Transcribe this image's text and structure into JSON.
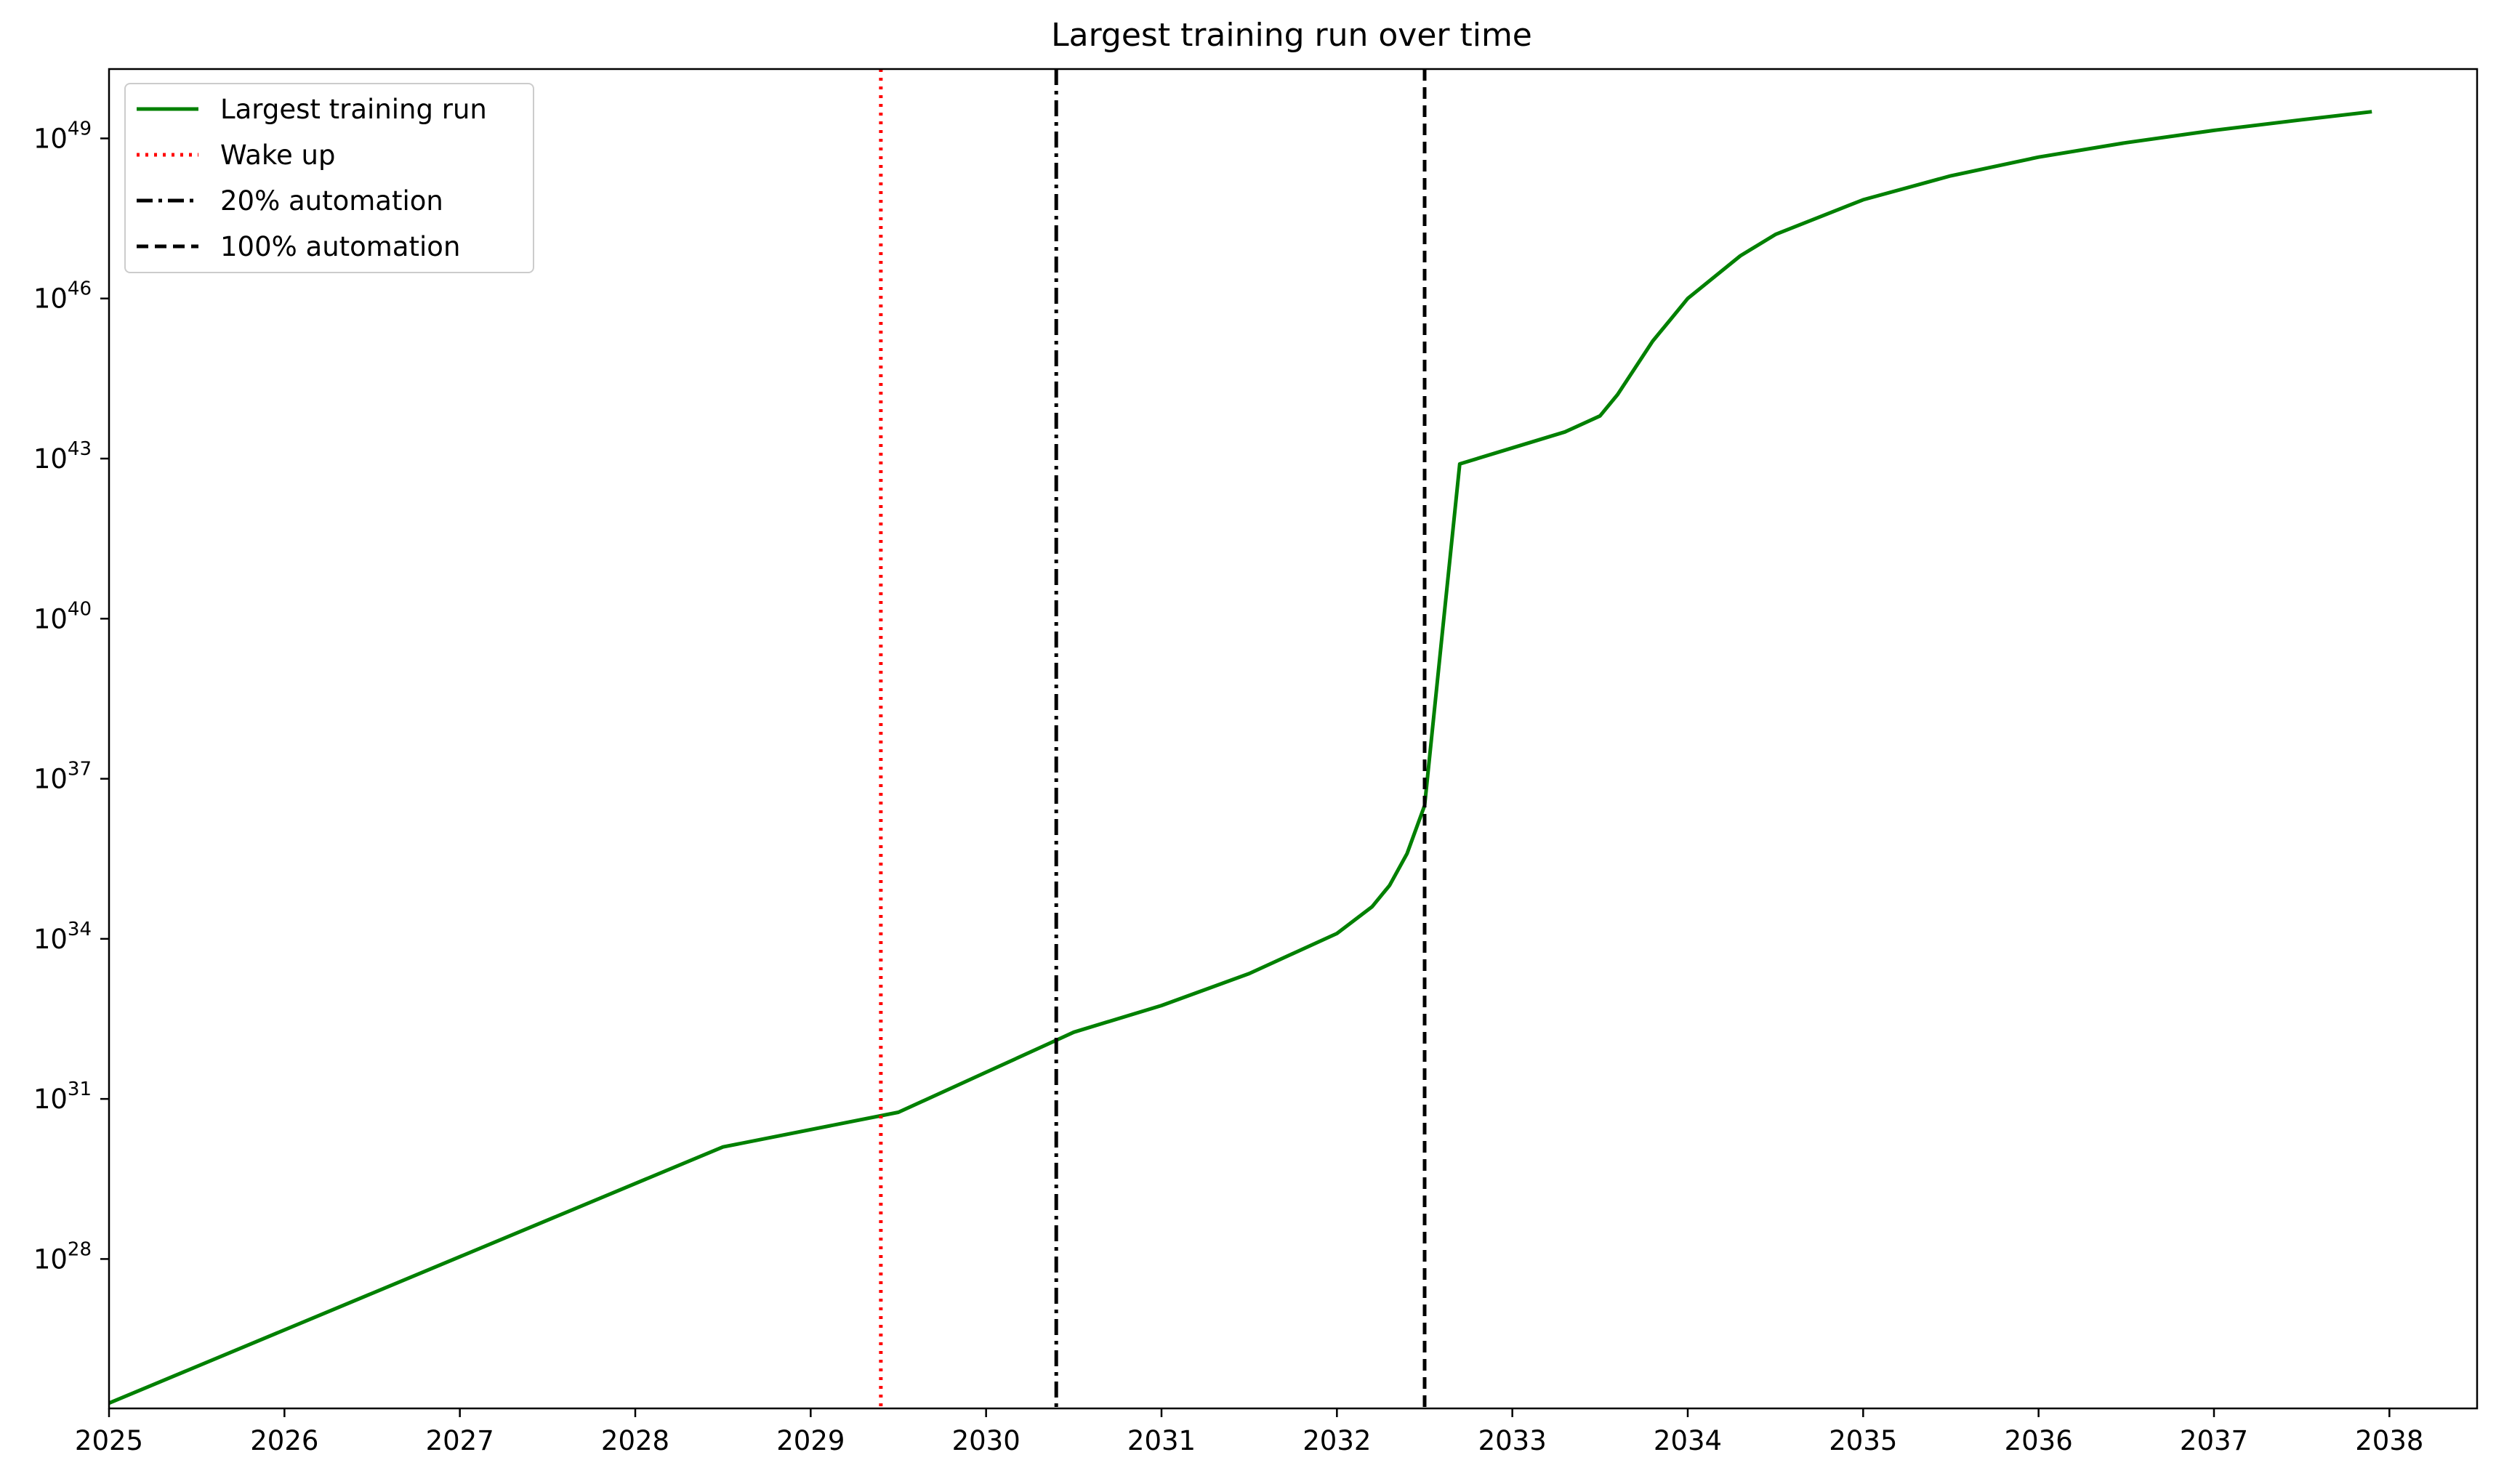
{
  "chart_data": {
    "type": "line",
    "title": "Largest training run over time",
    "xlabel": "",
    "ylabel": "",
    "y_scale": "log",
    "xlim": [
      2025,
      2038.5
    ],
    "ylim_log10": [
      25.2,
      50.3
    ],
    "x_ticks": [
      2025,
      2026,
      2027,
      2028,
      2029,
      2030,
      2031,
      2032,
      2033,
      2034,
      2035,
      2036,
      2037,
      2038
    ],
    "y_ticks": [
      {
        "exp": 28,
        "base": "10",
        "sup": "28"
      },
      {
        "exp": 31,
        "base": "10",
        "sup": "31"
      },
      {
        "exp": 34,
        "base": "10",
        "sup": "34"
      },
      {
        "exp": 37,
        "base": "10",
        "sup": "37"
      },
      {
        "exp": 40,
        "base": "10",
        "sup": "40"
      },
      {
        "exp": 43,
        "base": "10",
        "sup": "43"
      },
      {
        "exp": 46,
        "base": "10",
        "sup": "46"
      },
      {
        "exp": 49,
        "base": "10",
        "sup": "49"
      }
    ],
    "grid": false,
    "legend_position": "top-left",
    "series": [
      {
        "name": "Largest training run",
        "color": "#008000",
        "style": "solid",
        "points": [
          [
            2025.0,
            25.3
          ],
          [
            2028.5,
            30.1
          ],
          [
            2029.5,
            30.75
          ],
          [
            2030.0,
            31.5
          ],
          [
            2030.4,
            32.1
          ],
          [
            2030.5,
            32.25
          ],
          [
            2031.0,
            32.75
          ],
          [
            2031.5,
            33.35
          ],
          [
            2032.0,
            34.1
          ],
          [
            2032.2,
            34.6
          ],
          [
            2032.3,
            35.0
          ],
          [
            2032.4,
            35.6
          ],
          [
            2032.5,
            36.5
          ],
          [
            2032.6,
            39.7
          ],
          [
            2032.7,
            42.9
          ],
          [
            2033.0,
            43.2
          ],
          [
            2033.3,
            43.5
          ],
          [
            2033.5,
            43.8
          ],
          [
            2033.6,
            44.2
          ],
          [
            2033.8,
            45.2
          ],
          [
            2033.9,
            45.6
          ],
          [
            2034.0,
            46.0
          ],
          [
            2034.3,
            46.8
          ],
          [
            2034.5,
            47.2
          ],
          [
            2035.0,
            47.85
          ],
          [
            2035.5,
            48.3
          ],
          [
            2036.0,
            48.65
          ],
          [
            2036.5,
            48.92
          ],
          [
            2037.0,
            49.15
          ],
          [
            2037.5,
            49.35
          ],
          [
            2037.9,
            49.5
          ]
        ]
      },
      {
        "name": "Wake up",
        "color": "#ff0000",
        "style": "dotted",
        "vline_x": 2029.4
      },
      {
        "name": "20% automation",
        "color": "#000000",
        "style": "dashdot",
        "vline_x": 2030.4
      },
      {
        "name": "100% automation",
        "color": "#000000",
        "style": "dashed",
        "vline_x": 2032.5
      }
    ]
  }
}
